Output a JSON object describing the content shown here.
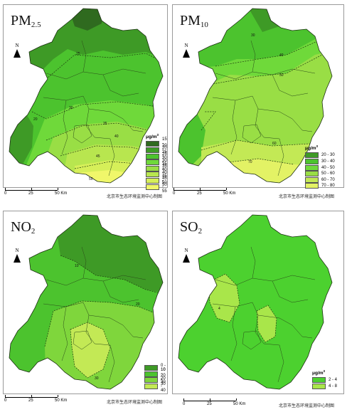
{
  "panels": [
    {
      "id": "pm25",
      "title_main": "PM",
      "title_sub": "2.5",
      "north": "N",
      "legend_title": "μg/m",
      "legend_sup": "3",
      "legend": [
        {
          "label": "15 - 20",
          "color": "#2f6a1f"
        },
        {
          "label": "20 - 25",
          "color": "#3e9a26"
        },
        {
          "label": "25 - 30",
          "color": "#4cc32e"
        },
        {
          "label": "30 - 35",
          "color": "#6fd93a"
        },
        {
          "label": "35 - 40",
          "color": "#99de45"
        },
        {
          "label": "40 - 45",
          "color": "#b8e64f"
        },
        {
          "label": "45 - 50",
          "color": "#d6ef59"
        },
        {
          "label": "50 - 55",
          "color": "#f0f76a"
        }
      ],
      "isolines": [
        "20",
        "25",
        "30",
        "35",
        "40",
        "45",
        "50"
      ],
      "scale": [
        "0",
        "25",
        "50 Km"
      ],
      "credit": "北京市生态环境监测中心制图"
    },
    {
      "id": "pm10",
      "title_main": "PM",
      "title_sub": "10",
      "north": "N",
      "legend_title": "μg/m",
      "legend_sup": "3",
      "legend": [
        {
          "label": "20 - 30",
          "color": "#3e9a26"
        },
        {
          "label": "30 - 40",
          "color": "#4cc32e"
        },
        {
          "label": "40 - 50",
          "color": "#6fd93a"
        },
        {
          "label": "50 - 60",
          "color": "#99de45"
        },
        {
          "label": "60 - 70",
          "color": "#c3e955"
        },
        {
          "label": "70 - 80",
          "color": "#e3f265"
        }
      ],
      "isolines": [
        "30",
        "40",
        "50",
        "60",
        "70"
      ],
      "scale": [
        "0",
        "25",
        "50 Km"
      ],
      "credit": "北京市生态环境监测中心制图"
    },
    {
      "id": "no2",
      "title_main": "NO",
      "title_sub": "2",
      "north": "N",
      "legend_title": "μg/m",
      "legend_sup": "3",
      "legend": [
        {
          "label": "0 - 10",
          "color": "#3e9a26"
        },
        {
          "label": "10 - 20",
          "color": "#4cc32e"
        },
        {
          "label": "20 - 30",
          "color": "#7fd63c"
        },
        {
          "label": "30 - 40",
          "color": "#c3e955"
        }
      ],
      "isolines": [
        "10",
        "20",
        "30"
      ],
      "scale": [
        "0",
        "25",
        "50 Km"
      ],
      "credit": "北京市生态环境监测中心制图"
    },
    {
      "id": "so2",
      "title_main": "SO",
      "title_sub": "2",
      "north": "N",
      "legend_title": "μg/m",
      "legend_sup": "3",
      "legend": [
        {
          "label": "2 - 4",
          "color": "#4cd12f"
        },
        {
          "label": "4 - 8",
          "color": "#a9e64a"
        }
      ],
      "isolines": [
        "4"
      ],
      "scale": [
        "0",
        "25",
        "50 Km"
      ],
      "credit": "北京市生态环境监测中心制图"
    }
  ]
}
